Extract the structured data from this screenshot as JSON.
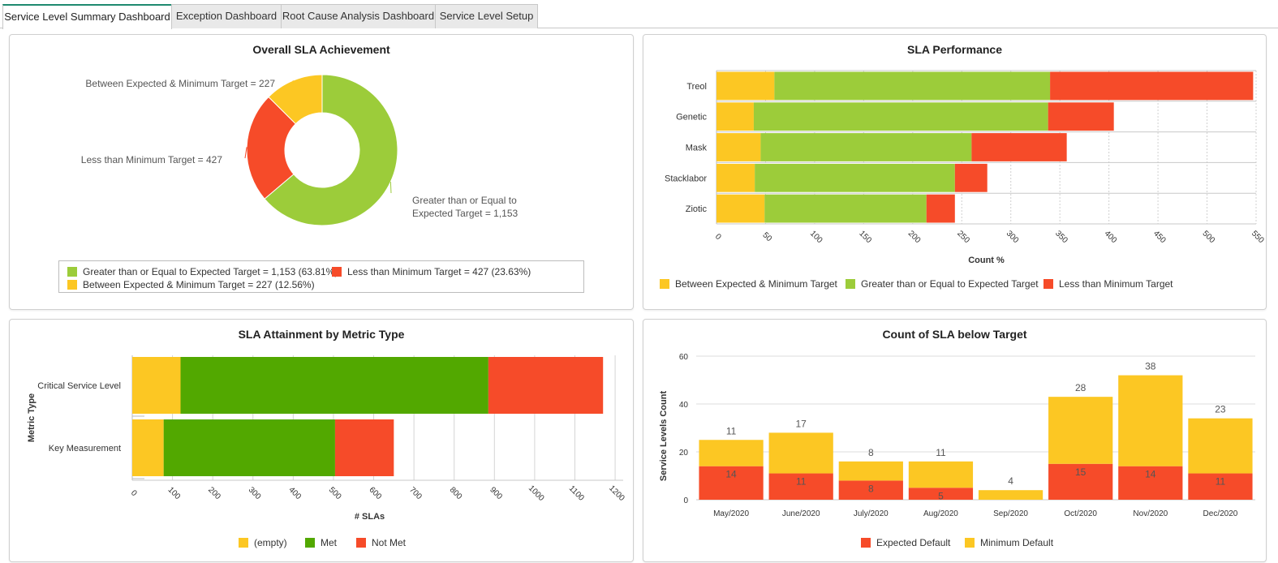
{
  "tabs": [
    {
      "label": "Service Level Summary Dashboard",
      "active": true
    },
    {
      "label": "Exception Dashboard",
      "active": false
    },
    {
      "label": "Root Cause Analysis Dashboard",
      "active": false
    },
    {
      "label": "Service Level Setup",
      "active": false
    }
  ],
  "colors": {
    "yellow": "#fcc723",
    "green": "#9ccc3a",
    "red": "#f64b29",
    "dark_green": "#52a800"
  },
  "chart_data": [
    {
      "type": "pie",
      "title": "Overall SLA Achievement",
      "donut": true,
      "slices": [
        {
          "label": "Greater than or Equal to Expected Target",
          "value": 1153,
          "percent": "63.81%",
          "callout": "Greater than or Equal to Expected Target = 1,153",
          "callout_lines": [
            "Greater than or Equal to",
            "Expected Target = 1,153"
          ],
          "color": "#9ccc3a"
        },
        {
          "label": "Less than Minimum Target",
          "value": 427,
          "percent": "23.63%",
          "callout": "Less than Minimum Target = 427",
          "callout_lines": [
            "Less than Minimum Target = 427"
          ],
          "color": "#f64b29"
        },
        {
          "label": "Between Expected & Minimum Target",
          "value": 227,
          "percent": "12.56%",
          "callout": "Between Expected & Minimum Target = 227",
          "callout_lines": [
            "Between Expected & Minimum Target = 227"
          ],
          "color": "#fcc723"
        }
      ],
      "legend": [
        {
          "text": "Greater than or Equal to Expected Target = 1,153 (63.81%)",
          "color": "#9ccc3a"
        },
        {
          "text": "Less than Minimum Target = 427 (23.63%)",
          "color": "#f64b29"
        },
        {
          "text": "Between Expected & Minimum Target = 227 (12.56%)",
          "color": "#fcc723"
        }
      ]
    },
    {
      "type": "bar",
      "orientation": "horizontal",
      "stacked": true,
      "title": "SLA Performance",
      "xlabel": "Count %",
      "categories": [
        "Treol",
        "Genetic",
        "Mask",
        "Stacklabor",
        "Ziotic"
      ],
      "xlim": [
        0,
        550
      ],
      "xticks": [
        0,
        50,
        100,
        150,
        200,
        250,
        300,
        350,
        400,
        450,
        500,
        550
      ],
      "series": [
        {
          "name": "Between Expected & Minimum Target",
          "color": "#fcc723",
          "values": [
            59,
            38,
            45,
            39,
            49
          ]
        },
        {
          "name": "Greater than or Equal to Expected Target",
          "color": "#9ccc3a",
          "values": [
            281,
            300,
            215,
            204,
            165
          ]
        },
        {
          "name": "Less than Minimum Target",
          "color": "#f64b29",
          "values": [
            207,
            67,
            97,
            33,
            29
          ]
        }
      ],
      "legend_position": "bottom"
    },
    {
      "type": "bar",
      "orientation": "horizontal",
      "stacked": true,
      "title": "SLA Attainment by Metric Type",
      "xlabel": "# SLAs",
      "ylabel": "Metric Type",
      "categories": [
        "Critical Service Level",
        "Key Measurement"
      ],
      "xlim": [
        0,
        1220
      ],
      "xticks": [
        0,
        100,
        200,
        300,
        400,
        500,
        600,
        700,
        800,
        900,
        1000,
        1100,
        1200
      ],
      "series": [
        {
          "name": "(empty)",
          "color": "#fcc723",
          "values": [
            120,
            78
          ]
        },
        {
          "name": "Met",
          "color": "#52a800",
          "values": [
            765,
            426
          ]
        },
        {
          "name": "Not Met",
          "color": "#f64b29",
          "values": [
            285,
            146
          ]
        }
      ],
      "legend_position": "bottom"
    },
    {
      "type": "bar",
      "stacked": true,
      "title": "Count of SLA below Target",
      "ylabel": "Service Levels Count",
      "categories": [
        "May/2020",
        "June/2020",
        "July/2020",
        "Aug/2020",
        "Sep/2020",
        "Oct/2020",
        "Nov/2020",
        "Dec/2020"
      ],
      "ylim": [
        0,
        60
      ],
      "yticks": [
        0,
        20,
        40,
        60
      ],
      "series": [
        {
          "name": "Expected Default",
          "color": "#f64b29",
          "values": [
            14,
            11,
            8,
            5,
            0,
            15,
            14,
            11
          ],
          "labels": [
            "14",
            "11",
            "8",
            "5",
            "",
            "15",
            "14",
            "11"
          ]
        },
        {
          "name": "Minimum Default",
          "color": "#fcc723",
          "values": [
            11,
            17,
            8,
            11,
            4,
            28,
            38,
            23
          ],
          "labels": [
            "11",
            "17",
            "8",
            "11",
            "4",
            "28",
            "38",
            "23"
          ]
        }
      ],
      "legend_position": "bottom"
    }
  ]
}
